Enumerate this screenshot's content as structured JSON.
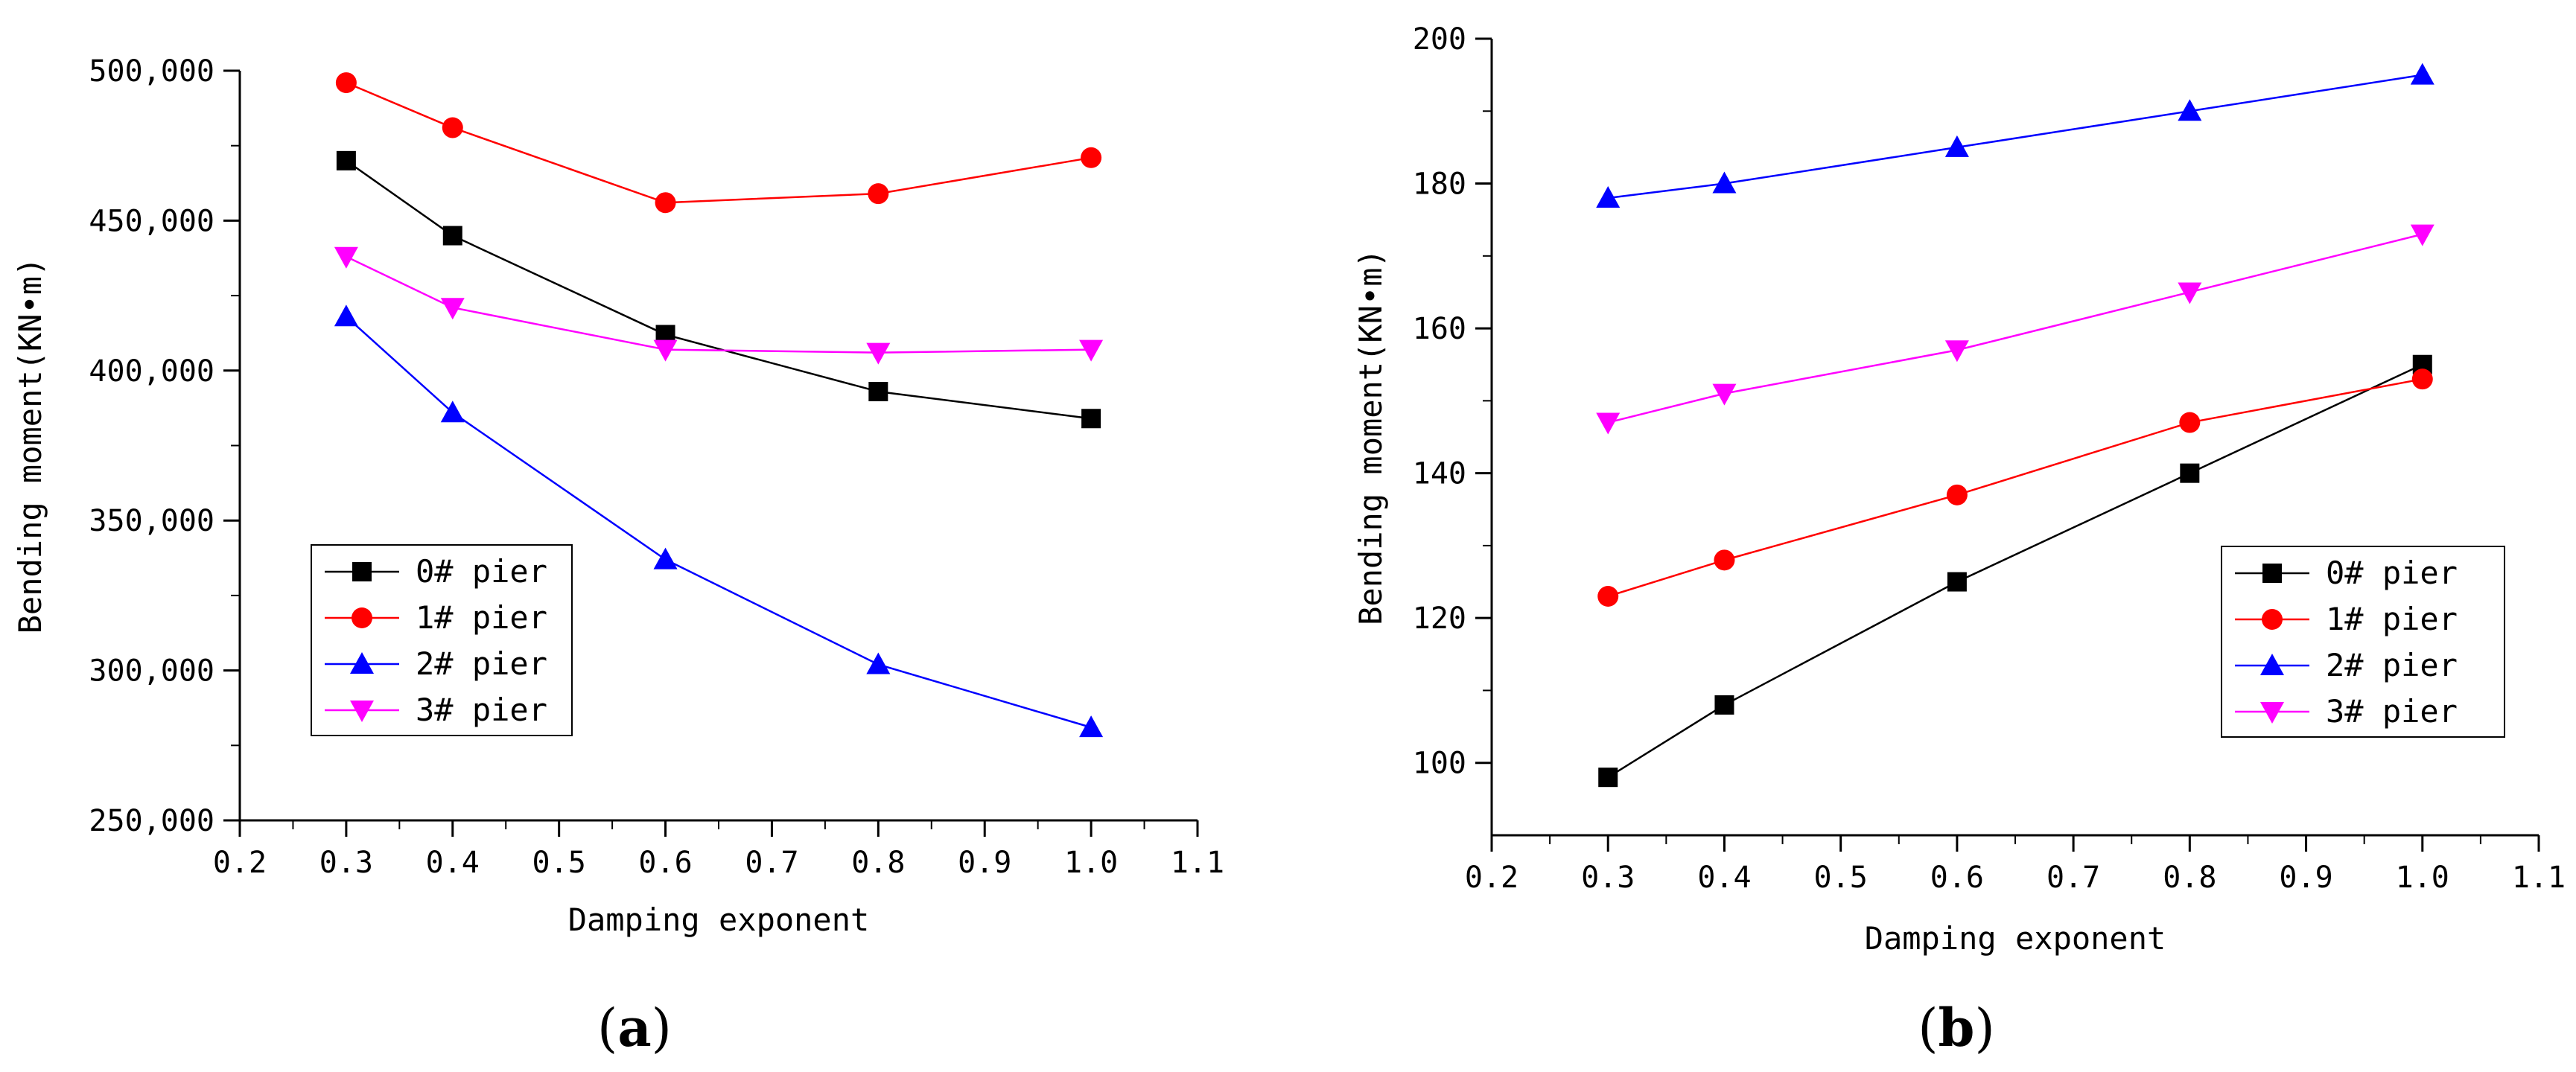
{
  "chart_data": [
    {
      "type": "line",
      "panel_label": "(a)",
      "panel_letter": "a",
      "xlabel": "Damping exponent",
      "ylabel": "Bending moment(KN•m)",
      "xlim": [
        0.2,
        1.1
      ],
      "ylim": [
        250000,
        500000
      ],
      "xticks": [
        0.2,
        0.3,
        0.4,
        0.5,
        0.6,
        0.7,
        0.8,
        0.9,
        1.0,
        1.1
      ],
      "xtick_labels": [
        "0.2",
        "0.3",
        "0.4",
        "0.5",
        "0.6",
        "0.7",
        "0.8",
        "0.9",
        "1.0",
        "1.1"
      ],
      "yticks": [
        250000,
        300000,
        350000,
        400000,
        450000,
        500000
      ],
      "ytick_labels": [
        "250,000",
        "300,000",
        "350,000",
        "400,000",
        "450,000",
        "500,000"
      ],
      "legend_position": "lower-left",
      "x": [
        0.3,
        0.4,
        0.6,
        0.8,
        1.0
      ],
      "series": [
        {
          "name": "0# pier",
          "color": "#000000",
          "marker": "square",
          "values": [
            470000,
            445000,
            412000,
            393000,
            384000
          ]
        },
        {
          "name": "1# pier",
          "color": "#ff0000",
          "marker": "circle",
          "values": [
            496000,
            481000,
            456000,
            459000,
            471000
          ]
        },
        {
          "name": "2# pier",
          "color": "#0000ff",
          "marker": "triangle-up",
          "values": [
            418000,
            386000,
            337000,
            302000,
            281000
          ]
        },
        {
          "name": "3# pier",
          "color": "#ff00ff",
          "marker": "triangle-down",
          "values": [
            438000,
            421000,
            407000,
            406000,
            407000
          ]
        }
      ]
    },
    {
      "type": "line",
      "panel_label": "(b)",
      "panel_letter": "b",
      "xlabel": "Damping exponent",
      "ylabel": "Bending moment(KN•m)",
      "xlim": [
        0.2,
        1.1
      ],
      "ylim": [
        90,
        200
      ],
      "xticks": [
        0.2,
        0.3,
        0.4,
        0.5,
        0.6,
        0.7,
        0.8,
        0.9,
        1.0,
        1.1
      ],
      "xtick_labels": [
        "0.2",
        "0.3",
        "0.4",
        "0.5",
        "0.6",
        "0.7",
        "0.8",
        "0.9",
        "1.0",
        "1.1"
      ],
      "yticks": [
        100,
        120,
        140,
        160,
        180,
        200
      ],
      "ytick_labels": [
        "100",
        "120",
        "140",
        "160",
        "180",
        "200"
      ],
      "legend_position": "lower-right",
      "x": [
        0.3,
        0.4,
        0.6,
        0.8,
        1.0
      ],
      "series": [
        {
          "name": "0# pier",
          "color": "#000000",
          "marker": "square",
          "values": [
            98,
            108,
            125,
            140,
            155
          ]
        },
        {
          "name": "1# pier",
          "color": "#ff0000",
          "marker": "circle",
          "values": [
            123,
            128,
            137,
            147,
            153
          ]
        },
        {
          "name": "2# pier",
          "color": "#0000ff",
          "marker": "triangle-up",
          "values": [
            178,
            180,
            185,
            190,
            195
          ]
        },
        {
          "name": "3# pier",
          "color": "#ff00ff",
          "marker": "triangle-down",
          "values": [
            147,
            151,
            157,
            165,
            173
          ]
        }
      ]
    }
  ]
}
